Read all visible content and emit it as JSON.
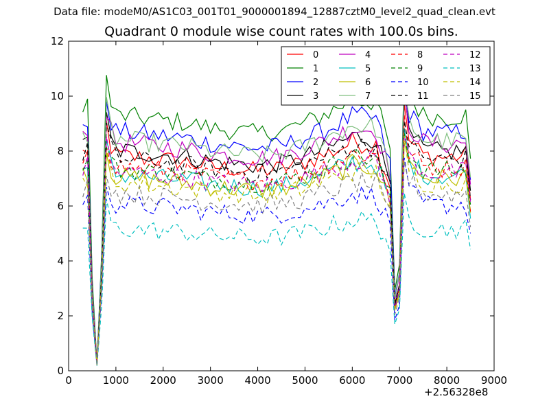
{
  "suptitle": "Data file: modeM0/AS1C03_001T01_9000001894_12887cztM0_level2_quad_clean.evt",
  "chart_data": {
    "type": "line",
    "title": "Quadrant 0 module wise count rates with 100.0s bins.",
    "xlabel": "",
    "ylabel": "",
    "x_offset_label": "+2.56328e8",
    "xlim": [
      0,
      9000
    ],
    "ylim": [
      0,
      12
    ],
    "xticks": [
      0,
      1000,
      2000,
      3000,
      4000,
      5000,
      6000,
      7000,
      8000,
      9000
    ],
    "yticks": [
      0,
      2,
      4,
      6,
      8,
      10,
      12
    ],
    "grid": false,
    "legend": {
      "placement": "top-right",
      "columns": 4
    },
    "profile_x": [
      300,
      400,
      450,
      500,
      600,
      700,
      750,
      800,
      900,
      1000,
      1500,
      2000,
      2500,
      3000,
      3500,
      4000,
      4500,
      5000,
      5500,
      6000,
      6500,
      6800,
      6900,
      6950,
      7000,
      7100,
      7200,
      7500,
      8000,
      8400,
      8500
    ],
    "profile_shape": [
      0.99,
      1.01,
      0.7,
      0.35,
      0.03,
      0.45,
      0.9,
      1.12,
      1.02,
      0.98,
      0.97,
      0.96,
      0.95,
      0.93,
      0.92,
      0.91,
      0.92,
      0.95,
      0.99,
      1.04,
      1.03,
      0.85,
      0.3,
      0.03,
      0.4,
      1.18,
      1.05,
      0.98,
      0.97,
      0.98,
      0.8
    ],
    "series": [
      {
        "name": "0",
        "color": "#ff0000",
        "dashed": false,
        "level": 8.0
      },
      {
        "name": "1",
        "color": "#008000",
        "dashed": false,
        "level": 9.5
      },
      {
        "name": "2",
        "color": "#0000ff",
        "dashed": false,
        "level": 8.9
      },
      {
        "name": "3",
        "color": "#000000",
        "dashed": false,
        "level": 8.2
      },
      {
        "name": "4",
        "color": "#bf00bf",
        "dashed": false,
        "level": 8.5
      },
      {
        "name": "5",
        "color": "#00bfbf",
        "dashed": false,
        "level": 7.3
      },
      {
        "name": "6",
        "color": "#bfbf00",
        "dashed": false,
        "level": 7.2
      },
      {
        "name": "7",
        "color": "#7fbf7f",
        "dashed": false,
        "level": 8.6
      },
      {
        "name": "8",
        "color": "#ff0000",
        "dashed": true,
        "level": 7.6
      },
      {
        "name": "9",
        "color": "#008000",
        "dashed": true,
        "level": 7.5
      },
      {
        "name": "10",
        "color": "#0000ff",
        "dashed": true,
        "level": 6.2
      },
      {
        "name": "11",
        "color": "#000000",
        "dashed": true,
        "level": 7.9
      },
      {
        "name": "12",
        "color": "#bf00bf",
        "dashed": true,
        "level": 7.4
      },
      {
        "name": "13",
        "color": "#00bfbf",
        "dashed": true,
        "level": 5.3
      },
      {
        "name": "14",
        "color": "#bfbf00",
        "dashed": true,
        "level": 7.0
      },
      {
        "name": "15",
        "color": "#7f7f7f",
        "dashed": true,
        "level": 6.6
      }
    ]
  }
}
